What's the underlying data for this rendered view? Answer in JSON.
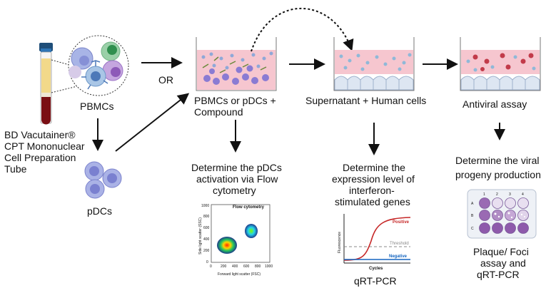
{
  "labels": {
    "pbmcs": "PBMCs",
    "tube_line1": "BD Vacutainer®",
    "tube_line2": "CPT Mononuclear",
    "tube_line3": "Cell Preparation",
    "tube_line4": "Tube",
    "pdcs": "pDCs",
    "or": "OR",
    "well1_line1": "PBMCs or pDCs +",
    "well1_line2": "Compound",
    "well2": "Supernatant + Human cells",
    "well3": "Antiviral assay",
    "flow_line1": "Determine the pDCs",
    "flow_line2": "activation via Flow",
    "flow_line3": "cytometry",
    "expr_line1": "Determine the",
    "expr_line2": "expression level of",
    "expr_line3": "interferon-",
    "expr_line4": "stimulated genes",
    "viral_line1": "Determine the viral",
    "viral_line2": "progeny production",
    "plaque_line1": "Plaque/ Foci",
    "plaque_line2": "assay and",
    "plaque_line3": "qRT-PCR",
    "qrtpcr": "qRT-PCR"
  },
  "flow_plot": {
    "title": "Flow cytometry",
    "xlabel": "Forward light scatter (FSC)",
    "ylabel": "Side light scatter (SSC)",
    "xticks": [
      "0",
      "200",
      "400",
      "600",
      "800",
      "1000"
    ],
    "yticks": [
      "0",
      "200",
      "400",
      "600",
      "800",
      "1000"
    ]
  },
  "pcr_plot": {
    "xlabel": "Cycles",
    "ylabel": "Fluorescence",
    "positive": "Positive",
    "threshold": "Threshold",
    "negative": "Negative",
    "colors": {
      "positive": "#c62828",
      "negative": "#1565c0",
      "threshold": "#888888"
    }
  },
  "plate": {
    "columns": [
      "1",
      "2",
      "3",
      "4"
    ],
    "rows": [
      "A",
      "B",
      "C"
    ]
  },
  "colors": {
    "medium": "#f6c6cf",
    "cell": "#b7c7e8",
    "pdc": "#8e89d6",
    "arrow": "#111111"
  }
}
